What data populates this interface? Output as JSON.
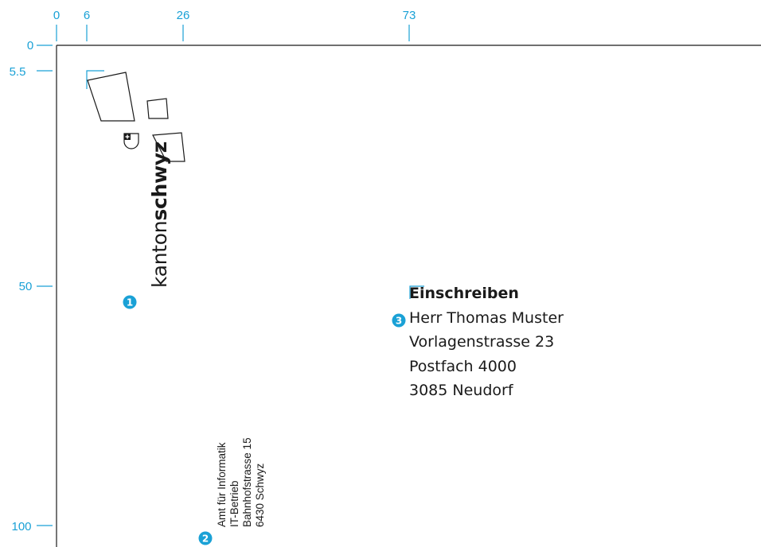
{
  "ruler": {
    "top_ticks": [
      "0",
      "6",
      "26",
      "73"
    ],
    "left_ticks": [
      "0",
      "5.5",
      "50",
      "100"
    ]
  },
  "logo": {
    "word_light": "kanton",
    "word_bold": "schwyz"
  },
  "sender": {
    "lines": [
      "Amt für Informatik",
      "IT-Betrieb",
      "Bahnhofstrasse 15",
      "6430 Schwyz"
    ]
  },
  "recipient": {
    "heading": "Einschreiben",
    "lines": [
      "Herr Thomas Muster",
      "Vorlagenstrasse 23",
      "Postfach 4000",
      "3085 Neudorf"
    ]
  },
  "markers": [
    "1",
    "2",
    "3"
  ],
  "colors": {
    "ruler": "#1aa1d6",
    "marker": "#1aa1d6",
    "text": "#1a1a1a"
  }
}
